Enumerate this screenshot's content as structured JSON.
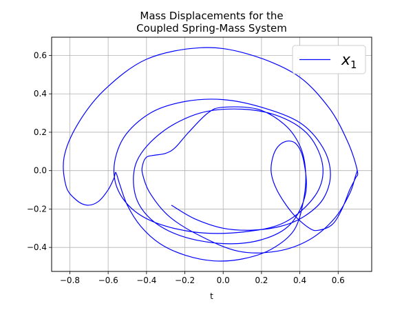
{
  "chart_data": {
    "type": "line",
    "title_line1": "Mass Displacements for the",
    "title_line2": "Coupled Spring-Mass System",
    "xlabel": "t",
    "ylabel": "",
    "xlim": [
      -0.895,
      0.775
    ],
    "ylim": [
      -0.525,
      0.695
    ],
    "xticks": [
      -0.8,
      -0.6,
      -0.4,
      -0.2,
      0.0,
      0.2,
      0.4,
      0.6
    ],
    "xtick_labels": [
      "−0.8",
      "−0.6",
      "−0.4",
      "−0.2",
      "0.0",
      "0.2",
      "0.4",
      "0.6"
    ],
    "yticks": [
      -0.4,
      -0.2,
      0.0,
      0.2,
      0.4,
      0.6
    ],
    "ytick_labels": [
      "−0.4",
      "−0.2",
      "0.0",
      "0.2",
      "0.4",
      "0.6"
    ],
    "grid": true,
    "legend_position": "top-right",
    "series": [
      {
        "name": "x",
        "name_subscript": "1",
        "color": "#0000ff",
        "points": [
          [
            -0.27,
            -0.18
          ],
          [
            -0.15,
            -0.25
          ],
          [
            0.0,
            -0.3
          ],
          [
            0.15,
            -0.31
          ],
          [
            0.3,
            -0.29
          ],
          [
            0.42,
            -0.24
          ],
          [
            0.52,
            -0.15
          ],
          [
            0.56,
            -0.02
          ],
          [
            0.52,
            0.12
          ],
          [
            0.4,
            0.25
          ],
          [
            0.2,
            0.33
          ],
          [
            0.0,
            0.37
          ],
          [
            -0.2,
            0.36
          ],
          [
            -0.38,
            0.3
          ],
          [
            -0.52,
            0.17
          ],
          [
            -0.57,
            0.0
          ],
          [
            -0.52,
            -0.15
          ],
          [
            -0.38,
            -0.26
          ],
          [
            -0.15,
            -0.32
          ],
          [
            0.1,
            -0.32
          ],
          [
            0.32,
            -0.27
          ],
          [
            0.48,
            -0.13
          ],
          [
            0.52,
            0.02
          ],
          [
            0.45,
            0.18
          ],
          [
            0.3,
            0.28
          ],
          [
            0.1,
            0.32
          ],
          [
            -0.12,
            0.3
          ],
          [
            -0.32,
            0.2
          ],
          [
            -0.45,
            0.05
          ],
          [
            -0.46,
            -0.12
          ],
          [
            -0.38,
            -0.25
          ],
          [
            -0.22,
            -0.34
          ],
          [
            0.0,
            -0.38
          ],
          [
            0.2,
            -0.36
          ],
          [
            0.35,
            -0.28
          ],
          [
            0.43,
            -0.12
          ],
          [
            0.42,
            0.05
          ],
          [
            0.38,
            0.14
          ],
          [
            0.32,
            0.15
          ],
          [
            0.27,
            0.1
          ],
          [
            0.25,
            0.0
          ],
          [
            0.28,
            -0.1
          ],
          [
            0.36,
            -0.22
          ],
          [
            0.45,
            -0.3
          ],
          [
            0.5,
            -0.31
          ],
          [
            0.57,
            -0.28
          ],
          [
            0.62,
            -0.2
          ],
          [
            0.66,
            -0.1
          ],
          [
            0.69,
            -0.04
          ],
          [
            0.7,
            0.0
          ],
          [
            0.65,
            0.15
          ],
          [
            0.55,
            0.33
          ],
          [
            0.38,
            0.5
          ],
          [
            0.12,
            0.61
          ],
          [
            -0.12,
            0.64
          ],
          [
            -0.4,
            0.58
          ],
          [
            -0.62,
            0.42
          ],
          [
            -0.76,
            0.24
          ],
          [
            -0.83,
            0.07
          ],
          [
            -0.82,
            -0.08
          ],
          [
            -0.77,
            -0.15
          ],
          [
            -0.71,
            -0.18
          ],
          [
            -0.65,
            -0.16
          ],
          [
            -0.6,
            -0.1
          ],
          [
            -0.57,
            -0.04
          ],
          [
            -0.56,
            -0.01
          ],
          [
            -0.54,
            -0.07
          ],
          [
            -0.5,
            -0.18
          ],
          [
            -0.43,
            -0.29
          ],
          [
            -0.33,
            -0.38
          ],
          [
            -0.2,
            -0.44
          ],
          [
            -0.05,
            -0.47
          ],
          [
            0.1,
            -0.46
          ],
          [
            0.25,
            -0.41
          ],
          [
            0.37,
            -0.31
          ],
          [
            0.42,
            -0.15
          ],
          [
            0.43,
            0.0
          ],
          [
            0.4,
            0.13
          ],
          [
            0.32,
            0.24
          ],
          [
            0.18,
            0.32
          ],
          [
            0.0,
            0.33
          ],
          [
            -0.08,
            0.3
          ],
          [
            -0.18,
            0.2
          ],
          [
            -0.25,
            0.12
          ],
          [
            -0.3,
            0.09
          ],
          [
            -0.36,
            0.08
          ],
          [
            -0.4,
            0.07
          ],
          [
            -0.42,
            0.03
          ],
          [
            -0.42,
            -0.02
          ],
          [
            -0.38,
            -0.12
          ],
          [
            -0.28,
            -0.24
          ],
          [
            -0.12,
            -0.34
          ],
          [
            0.08,
            -0.42
          ],
          [
            0.28,
            -0.42
          ],
          [
            0.45,
            -0.36
          ],
          [
            0.58,
            -0.25
          ],
          [
            0.66,
            -0.12
          ],
          [
            0.69,
            -0.03
          ],
          [
            0.7,
            0.0
          ]
        ]
      }
    ]
  }
}
